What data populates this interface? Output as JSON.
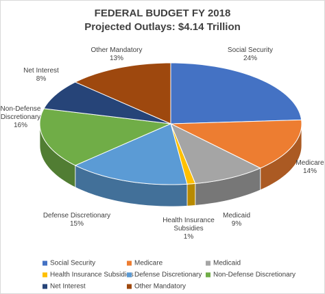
{
  "chart_data": {
    "type": "pie",
    "title": "FEDERAL BUDGET FY 2018",
    "subtitle": "Projected Outlays: $4.14 Trillion",
    "categories": [
      "Social Security",
      "Medicare",
      "Medicaid",
      "Health Insurance Subsidies",
      "Defense Discretionary",
      "Non-Defense Discretionary",
      "Net Interest",
      "Other Mandatory"
    ],
    "values": [
      24,
      14,
      9,
      1,
      15,
      16,
      8,
      13
    ],
    "value_labels": [
      "24%",
      "14%",
      "9%",
      "1%",
      "15%",
      "16%",
      "8%",
      "13%"
    ],
    "colors": [
      "#4472c4",
      "#ed7d31",
      "#a5a5a5",
      "#ffc000",
      "#5b9bd5",
      "#70ad47",
      "#264478",
      "#9e480e"
    ],
    "legend": "bottom"
  }
}
